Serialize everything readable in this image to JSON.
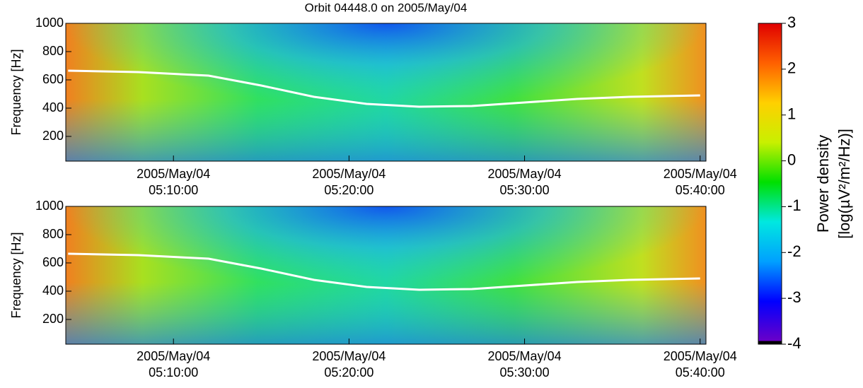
{
  "chart_data": [
    {
      "type": "spectrogram",
      "title": "Orbit 04448.0 on 2005/May/04",
      "ylabel": "Frequency [Hz]",
      "ylim": [
        25,
        1000
      ],
      "yticks": [
        200,
        400,
        600,
        800,
        1000
      ],
      "xlim": [
        "05:03:52",
        "05:40:20"
      ],
      "xticks": [
        {
          "value": "05:10:00",
          "label": [
            "2005/May/04",
            "05:10:00"
          ]
        },
        {
          "value": "05:20:00",
          "label": [
            "2005/May/04",
            "05:20:00"
          ]
        },
        {
          "value": "05:30:00",
          "label": [
            "2005/May/04",
            "05:30:00"
          ]
        },
        {
          "value": "05:40:00",
          "label": [
            "2005/May/04",
            "05:40:00"
          ]
        }
      ],
      "series": [
        {
          "color": "#ffffff",
          "x": [
            "05:04:00",
            "05:08:00",
            "05:12:00",
            "05:15:00",
            "05:18:00",
            "05:21:00",
            "05:24:00",
            "05:27:00",
            "05:30:00",
            "05:33:00",
            "05:36:00",
            "05:40:00"
          ],
          "values": [
            665,
            655,
            630,
            560,
            480,
            430,
            410,
            415,
            440,
            465,
            480,
            490
          ]
        }
      ]
    },
    {
      "type": "spectrogram",
      "ylabel": "Frequency [Hz]",
      "ylim": [
        25,
        1000
      ],
      "yticks": [
        200,
        400,
        600,
        800,
        1000
      ],
      "xlim": [
        "05:03:52",
        "05:40:20"
      ],
      "xticks": [
        {
          "value": "05:10:00",
          "label": [
            "2005/May/04",
            "05:10:00"
          ]
        },
        {
          "value": "05:20:00",
          "label": [
            "2005/May/04",
            "05:20:00"
          ]
        },
        {
          "value": "05:30:00",
          "label": [
            "2005/May/04",
            "05:30:00"
          ]
        },
        {
          "value": "05:40:00",
          "label": [
            "2005/May/04",
            "05:40:00"
          ]
        }
      ],
      "series": [
        {
          "color": "#ffffff",
          "x": [
            "05:04:00",
            "05:08:00",
            "05:12:00",
            "05:15:00",
            "05:18:00",
            "05:21:00",
            "05:24:00",
            "05:27:00",
            "05:30:00",
            "05:33:00",
            "05:36:00",
            "05:40:00"
          ],
          "values": [
            665,
            655,
            630,
            560,
            480,
            430,
            410,
            415,
            440,
            465,
            480,
            490
          ]
        }
      ]
    },
    {
      "type": "colorbar",
      "label": [
        "Power density",
        "[log(µV²/m²/Hz)]"
      ],
      "ylim": [
        -4,
        3
      ],
      "yticks": [
        -4,
        -3,
        -2,
        -1,
        0,
        1,
        2,
        3
      ],
      "colors": [
        "#000000",
        "#6a00c8",
        "#0000ff",
        "#00a0ff",
        "#00e8e0",
        "#00e000",
        "#c8f000",
        "#ffd000",
        "#ff6000",
        "#e00000"
      ]
    }
  ]
}
